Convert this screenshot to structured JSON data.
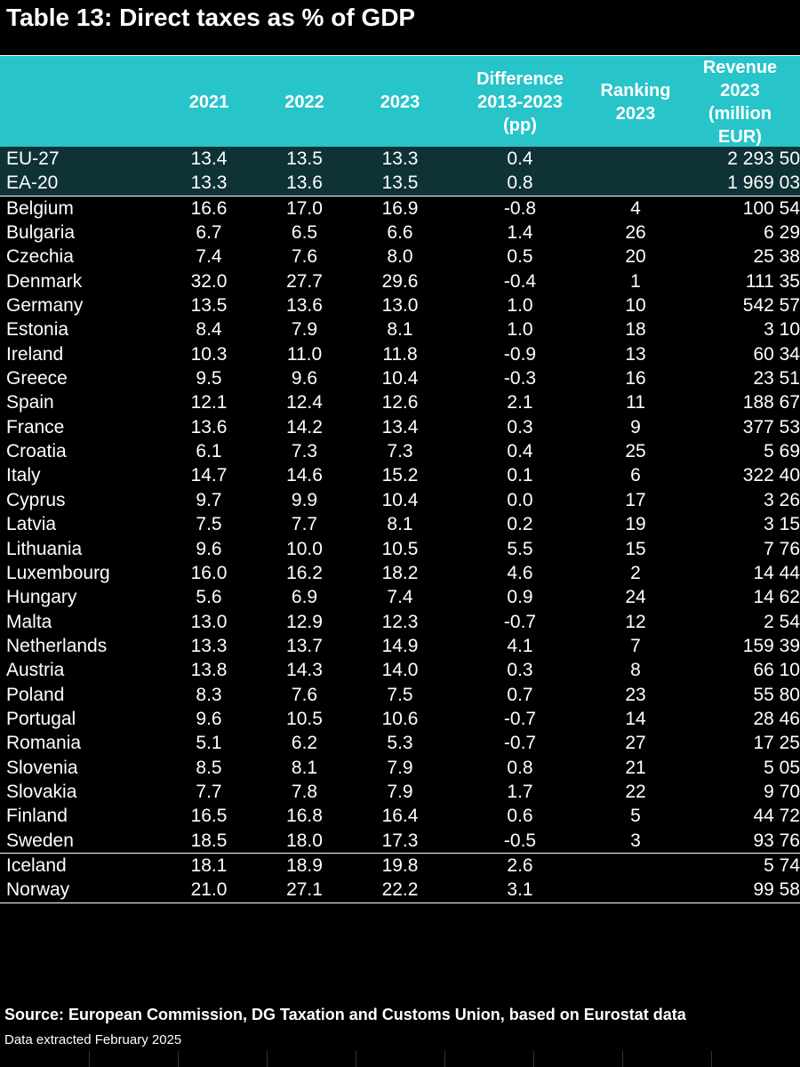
{
  "title": "Table 13: Direct taxes as % of GDP",
  "header": {
    "country": "",
    "y2021": "2021",
    "y2022": "2022",
    "y2023": "2023",
    "difference": "Difference\n2013-2023\n(pp)",
    "ranking": "Ranking\n2023",
    "revenue": "Revenue\n2023\n(million\nEUR)"
  },
  "aggregates": [
    {
      "country": "EU-27",
      "y2021": "13.4",
      "y2022": "13.5",
      "y2023": "13.3",
      "diff": "0.4",
      "rank": "",
      "revenue": "2 293 50"
    },
    {
      "country": "EA-20",
      "y2021": "13.3",
      "y2022": "13.6",
      "y2023": "13.5",
      "diff": "0.8",
      "rank": "",
      "revenue": "1 969 03"
    }
  ],
  "members": [
    {
      "country": "Belgium",
      "y2021": "16.6",
      "y2022": "17.0",
      "y2023": "16.9",
      "diff": "-0.8",
      "rank": "4",
      "revenue": "100 54"
    },
    {
      "country": "Bulgaria",
      "y2021": "6.7",
      "y2022": "6.5",
      "y2023": "6.6",
      "diff": "1.4",
      "rank": "26",
      "revenue": "6 29"
    },
    {
      "country": "Czechia",
      "y2021": "7.4",
      "y2022": "7.6",
      "y2023": "8.0",
      "diff": "0.5",
      "rank": "20",
      "revenue": "25 38"
    },
    {
      "country": "Denmark",
      "y2021": "32.0",
      "y2022": "27.7",
      "y2023": "29.6",
      "diff": "-0.4",
      "rank": "1",
      "revenue": "111 35"
    },
    {
      "country": "Germany",
      "y2021": "13.5",
      "y2022": "13.6",
      "y2023": "13.0",
      "diff": "1.0",
      "rank": "10",
      "revenue": "542 57"
    },
    {
      "country": "Estonia",
      "y2021": "8.4",
      "y2022": "7.9",
      "y2023": "8.1",
      "diff": "1.0",
      "rank": "18",
      "revenue": "3 10"
    },
    {
      "country": "Ireland",
      "y2021": "10.3",
      "y2022": "11.0",
      "y2023": "11.8",
      "diff": "-0.9",
      "rank": "13",
      "revenue": "60 34"
    },
    {
      "country": "Greece",
      "y2021": "9.5",
      "y2022": "9.6",
      "y2023": "10.4",
      "diff": "-0.3",
      "rank": "16",
      "revenue": "23 51"
    },
    {
      "country": "Spain",
      "y2021": "12.1",
      "y2022": "12.4",
      "y2023": "12.6",
      "diff": "2.1",
      "rank": "11",
      "revenue": "188 67"
    },
    {
      "country": "France",
      "y2021": "13.6",
      "y2022": "14.2",
      "y2023": "13.4",
      "diff": "0.3",
      "rank": "9",
      "revenue": "377 53"
    },
    {
      "country": "Croatia",
      "y2021": "6.1",
      "y2022": "7.3",
      "y2023": "7.3",
      "diff": "0.4",
      "rank": "25",
      "revenue": "5 69"
    },
    {
      "country": "Italy",
      "y2021": "14.7",
      "y2022": "14.6",
      "y2023": "15.2",
      "diff": "0.1",
      "rank": "6",
      "revenue": "322 40"
    },
    {
      "country": "Cyprus",
      "y2021": "9.7",
      "y2022": "9.9",
      "y2023": "10.4",
      "diff": "0.0",
      "rank": "17",
      "revenue": "3 26"
    },
    {
      "country": "Latvia",
      "y2021": "7.5",
      "y2022": "7.7",
      "y2023": "8.1",
      "diff": "0.2",
      "rank": "19",
      "revenue": "3 15"
    },
    {
      "country": "Lithuania",
      "y2021": "9.6",
      "y2022": "10.0",
      "y2023": "10.5",
      "diff": "5.5",
      "rank": "15",
      "revenue": "7 76"
    },
    {
      "country": "Luxembourg",
      "y2021": "16.0",
      "y2022": "16.2",
      "y2023": "18.2",
      "diff": "4.6",
      "rank": "2",
      "revenue": "14 44"
    },
    {
      "country": "Hungary",
      "y2021": "5.6",
      "y2022": "6.9",
      "y2023": "7.4",
      "diff": "0.9",
      "rank": "24",
      "revenue": "14 62"
    },
    {
      "country": "Malta",
      "y2021": "13.0",
      "y2022": "12.9",
      "y2023": "12.3",
      "diff": "-0.7",
      "rank": "12",
      "revenue": "2 54"
    },
    {
      "country": "Netherlands",
      "y2021": "13.3",
      "y2022": "13.7",
      "y2023": "14.9",
      "diff": "4.1",
      "rank": "7",
      "revenue": "159 39"
    },
    {
      "country": "Austria",
      "y2021": "13.8",
      "y2022": "14.3",
      "y2023": "14.0",
      "diff": "0.3",
      "rank": "8",
      "revenue": "66 10"
    },
    {
      "country": "Poland",
      "y2021": "8.3",
      "y2022": "7.6",
      "y2023": "7.5",
      "diff": "0.7",
      "rank": "23",
      "revenue": "55 80"
    },
    {
      "country": "Portugal",
      "y2021": "9.6",
      "y2022": "10.5",
      "y2023": "10.6",
      "diff": "-0.7",
      "rank": "14",
      "revenue": "28 46"
    },
    {
      "country": "Romania",
      "y2021": "5.1",
      "y2022": "6.2",
      "y2023": "5.3",
      "diff": "-0.7",
      "rank": "27",
      "revenue": "17 25"
    },
    {
      "country": "Slovenia",
      "y2021": "8.5",
      "y2022": "8.1",
      "y2023": "7.9",
      "diff": "0.8",
      "rank": "21",
      "revenue": "5 05"
    },
    {
      "country": "Slovakia",
      "y2021": "7.7",
      "y2022": "7.8",
      "y2023": "7.9",
      "diff": "1.7",
      "rank": "22",
      "revenue": "9 70"
    },
    {
      "country": "Finland",
      "y2021": "16.5",
      "y2022": "16.8",
      "y2023": "16.4",
      "diff": "0.6",
      "rank": "5",
      "revenue": "44 72"
    },
    {
      "country": "Sweden",
      "y2021": "18.5",
      "y2022": "18.0",
      "y2023": "17.3",
      "diff": "-0.5",
      "rank": "3",
      "revenue": "93 76"
    }
  ],
  "others": [
    {
      "country": "Iceland",
      "y2021": "18.1",
      "y2022": "18.9",
      "y2023": "19.8",
      "diff": "2.6",
      "rank": "",
      "revenue": "5 74"
    },
    {
      "country": "Norway",
      "y2021": "21.0",
      "y2022": "27.1",
      "y2023": "22.2",
      "diff": "3.1",
      "rank": "",
      "revenue": "99 58"
    }
  ],
  "source": "Source: European Commission, DG Taxation and Customs Union, based on Eurostat data",
  "extracted": "Data extracted February 2025"
}
